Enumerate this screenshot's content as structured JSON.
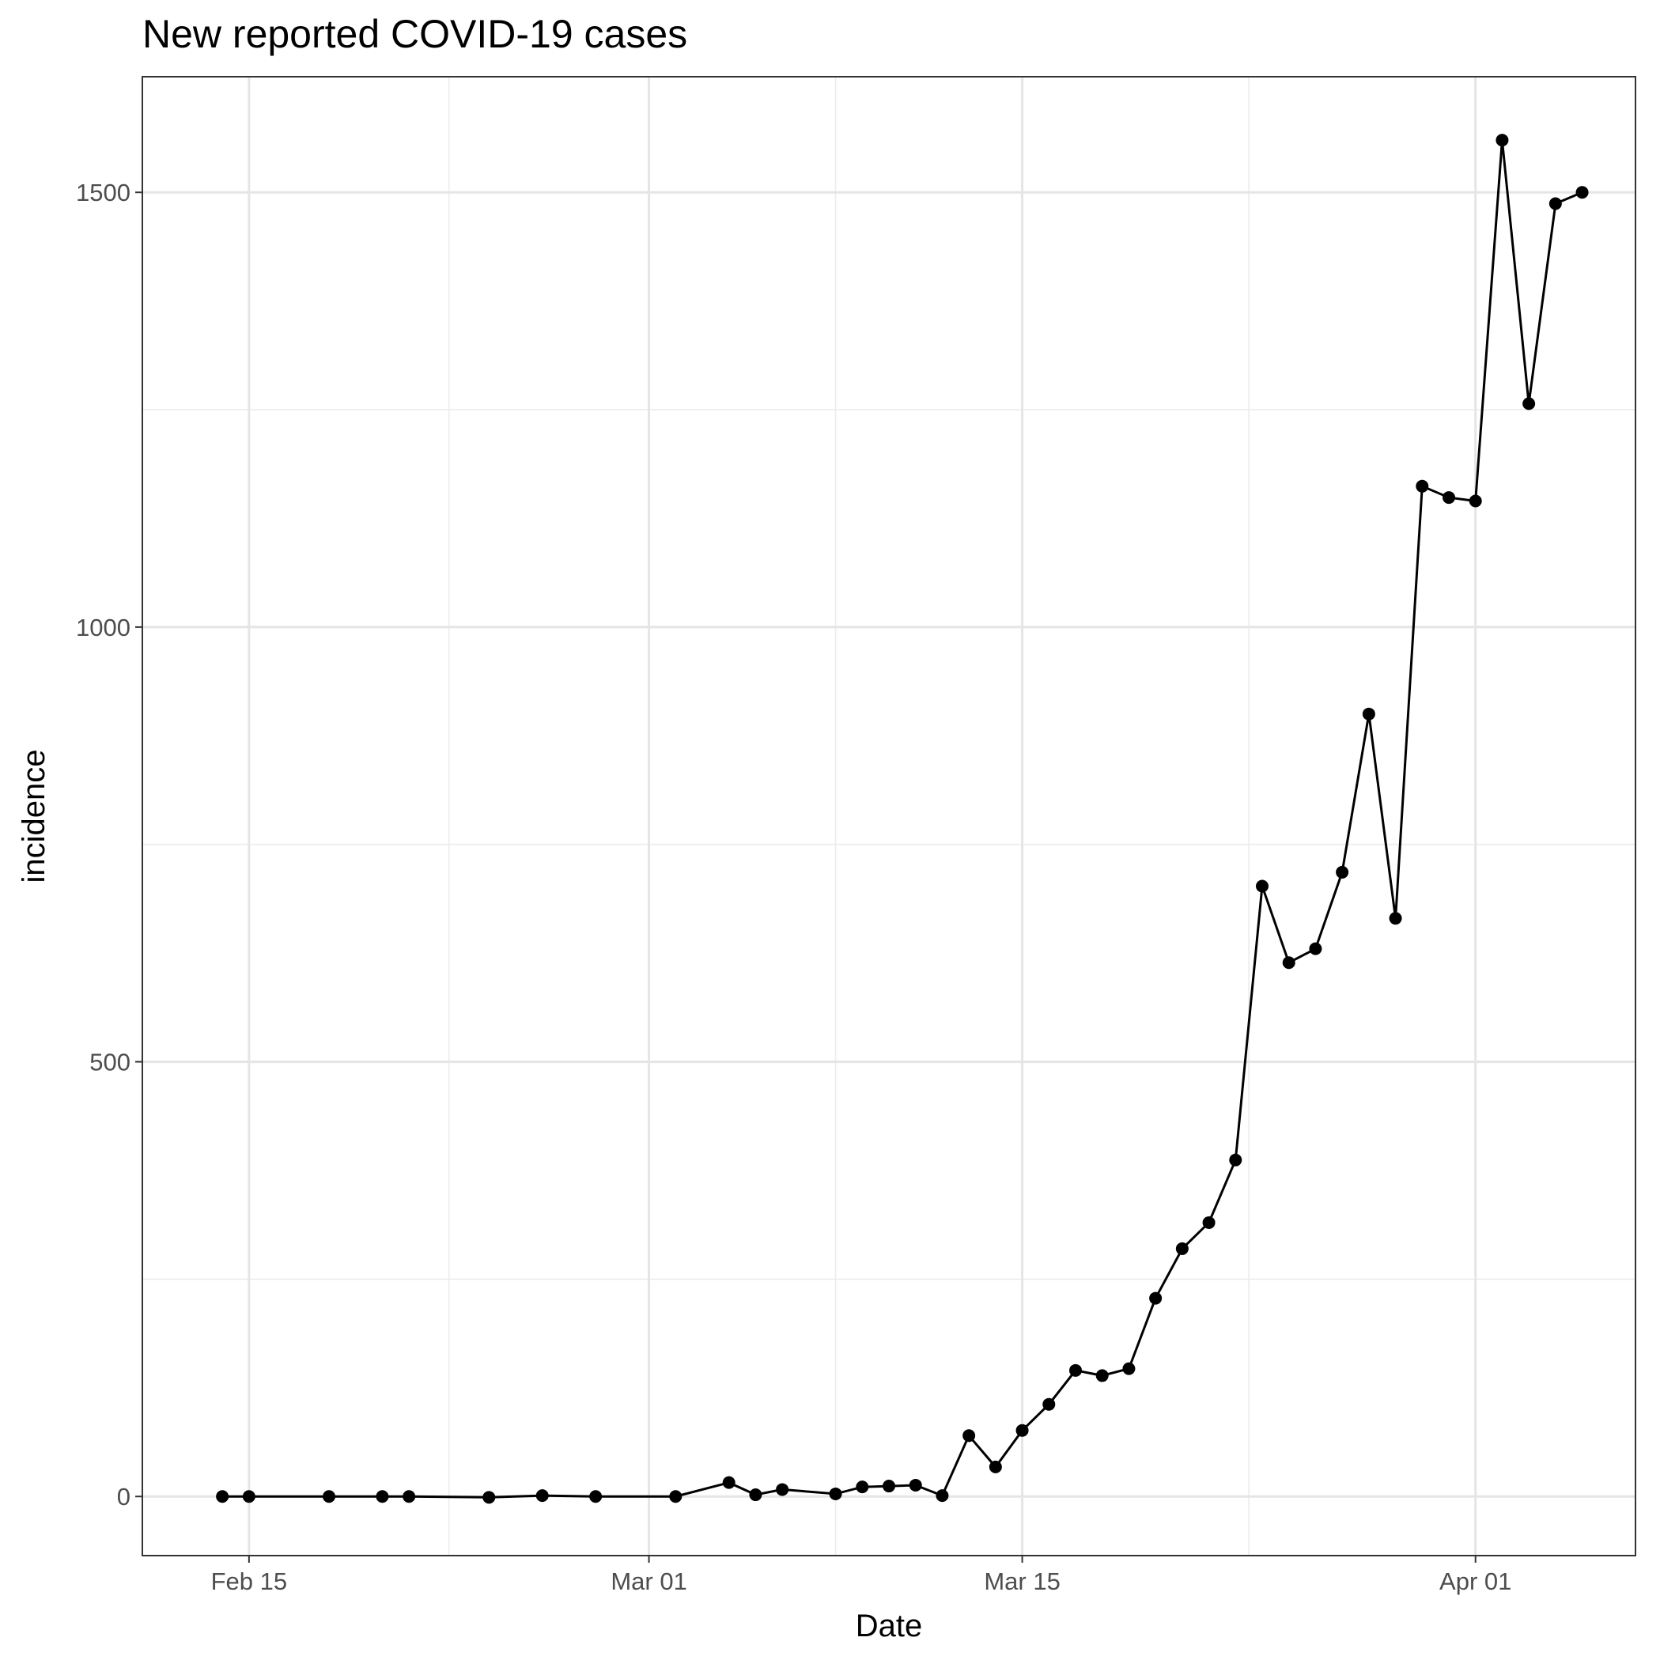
{
  "chart_data": {
    "type": "line",
    "title": "New reported COVID-19 cases",
    "xlabel": "Date",
    "ylabel": "incidence",
    "x_ticks": [
      {
        "date": "2020-02-15",
        "label": "Feb 15"
      },
      {
        "date": "2020-03-01",
        "label": "Mar 01"
      },
      {
        "date": "2020-03-15",
        "label": "Mar 15"
      },
      {
        "date": "2020-04-01",
        "label": "Apr 01"
      }
    ],
    "y_ticks": [
      0,
      500,
      1000,
      1500
    ],
    "xlim": [
      "2020-02-11",
      "2020-04-07"
    ],
    "ylim": [
      -68,
      1633
    ],
    "grid": true,
    "series": [
      {
        "color": "#000000",
        "points": [
          {
            "x": "2020-02-14",
            "y": 0
          },
          {
            "x": "2020-02-15",
            "y": 0
          },
          {
            "x": "2020-02-18",
            "y": 0
          },
          {
            "x": "2020-02-20",
            "y": 0
          },
          {
            "x": "2020-02-21",
            "y": 0
          },
          {
            "x": "2020-02-24",
            "y": -1
          },
          {
            "x": "2020-02-26",
            "y": 1
          },
          {
            "x": "2020-02-28",
            "y": 0
          },
          {
            "x": "2020-03-02",
            "y": 0
          },
          {
            "x": "2020-03-04",
            "y": 16
          },
          {
            "x": "2020-03-05",
            "y": 2
          },
          {
            "x": "2020-03-06",
            "y": 8
          },
          {
            "x": "2020-03-08",
            "y": 3
          },
          {
            "x": "2020-03-09",
            "y": 11
          },
          {
            "x": "2020-03-10",
            "y": 12
          },
          {
            "x": "2020-03-11",
            "y": 13
          },
          {
            "x": "2020-03-12",
            "y": 1
          },
          {
            "x": "2020-03-13",
            "y": 70
          },
          {
            "x": "2020-03-14",
            "y": 34
          },
          {
            "x": "2020-03-15",
            "y": 76
          },
          {
            "x": "2020-03-16",
            "y": 106
          },
          {
            "x": "2020-03-17",
            "y": 145
          },
          {
            "x": "2020-03-18",
            "y": 139
          },
          {
            "x": "2020-03-19",
            "y": 147
          },
          {
            "x": "2020-03-20",
            "y": 228
          },
          {
            "x": "2020-03-21",
            "y": 285
          },
          {
            "x": "2020-03-22",
            "y": 315
          },
          {
            "x": "2020-03-23",
            "y": 387
          },
          {
            "x": "2020-03-24",
            "y": 702
          },
          {
            "x": "2020-03-25",
            "y": 614
          },
          {
            "x": "2020-03-26",
            "y": 630
          },
          {
            "x": "2020-03-27",
            "y": 718
          },
          {
            "x": "2020-03-28",
            "y": 900
          },
          {
            "x": "2020-03-29",
            "y": 665
          },
          {
            "x": "2020-03-30",
            "y": 1162
          },
          {
            "x": "2020-03-31",
            "y": 1149
          },
          {
            "x": "2020-04-01",
            "y": 1145
          },
          {
            "x": "2020-04-02",
            "y": 1560
          },
          {
            "x": "2020-04-03",
            "y": 1257
          },
          {
            "x": "2020-04-04",
            "y": 1487
          },
          {
            "x": "2020-04-05",
            "y": 1500
          }
        ]
      }
    ]
  }
}
